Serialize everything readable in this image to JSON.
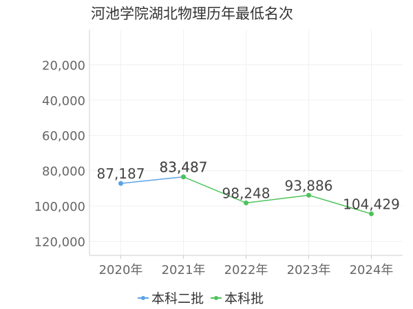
{
  "chart_data": {
    "type": "line",
    "title": "河池学院湖北物理历年最低名次",
    "xlabel": "",
    "ylabel": "",
    "categories": [
      "2020年",
      "2021年",
      "2022年",
      "2023年",
      "2024年"
    ],
    "y_inverted": true,
    "ylim": [
      0,
      128000
    ],
    "yticks": [
      {
        "value": 20000,
        "label": "20,000"
      },
      {
        "value": 40000,
        "label": "40,000"
      },
      {
        "value": 60000,
        "label": "60,000"
      },
      {
        "value": 80000,
        "label": "80,000"
      },
      {
        "value": 100000,
        "label": "100,000"
      },
      {
        "value": 120000,
        "label": "120,000"
      }
    ],
    "grid": true,
    "legend_position": "bottom-center",
    "series": [
      {
        "name": "本科二批",
        "color": "#5ba3e6",
        "values": [
          87187,
          83487,
          null,
          null,
          null
        ],
        "labels": [
          "87,187",
          "83,487",
          "",
          "",
          ""
        ]
      },
      {
        "name": "本科批",
        "color": "#4cc35a",
        "values": [
          null,
          83487,
          98248,
          93886,
          104429
        ],
        "labels": [
          "",
          "83,487",
          "98,248",
          "93,886",
          "104,429"
        ]
      }
    ]
  }
}
